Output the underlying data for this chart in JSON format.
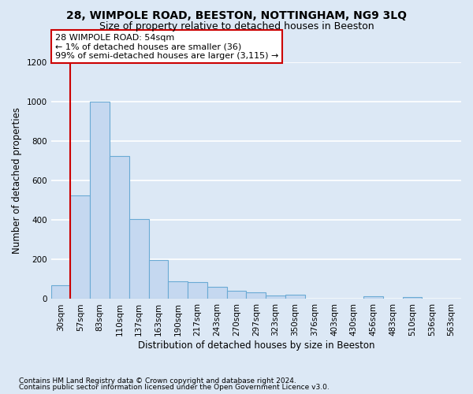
{
  "title1": "28, WIMPOLE ROAD, BEESTON, NOTTINGHAM, NG9 3LQ",
  "title2": "Size of property relative to detached houses in Beeston",
  "xlabel": "Distribution of detached houses by size in Beeston",
  "ylabel": "Number of detached properties",
  "footer1": "Contains HM Land Registry data © Crown copyright and database right 2024.",
  "footer2": "Contains public sector information licensed under the Open Government Licence v3.0.",
  "bin_labels": [
    "30sqm",
    "57sqm",
    "83sqm",
    "110sqm",
    "137sqm",
    "163sqm",
    "190sqm",
    "217sqm",
    "243sqm",
    "270sqm",
    "297sqm",
    "323sqm",
    "350sqm",
    "376sqm",
    "403sqm",
    "430sqm",
    "456sqm",
    "483sqm",
    "510sqm",
    "536sqm",
    "563sqm"
  ],
  "bar_values": [
    70,
    525,
    1000,
    725,
    405,
    197,
    90,
    85,
    60,
    42,
    33,
    17,
    20,
    0,
    0,
    0,
    15,
    0,
    10,
    0,
    0
  ],
  "bar_color": "#c5d8f0",
  "bar_edge_color": "#6aaad4",
  "annotation_text": "28 WIMPOLE ROAD: 54sqm\n← 1% of detached houses are smaller (36)\n99% of semi-detached houses are larger (3,115) →",
  "annotation_box_color": "#ffffff",
  "annotation_box_edge": "#cc0000",
  "vline_color": "#cc0000",
  "ylim": [
    0,
    1200
  ],
  "yticks": [
    0,
    200,
    400,
    600,
    800,
    1000,
    1200
  ],
  "bg_color": "#dce8f5",
  "plot_bg": "#dce8f5",
  "grid_color": "#ffffff",
  "title1_fontsize": 10,
  "title2_fontsize": 9,
  "xlabel_fontsize": 8.5,
  "ylabel_fontsize": 8.5,
  "tick_fontsize": 7.5,
  "footer_fontsize": 6.5,
  "ann_fontsize": 8
}
